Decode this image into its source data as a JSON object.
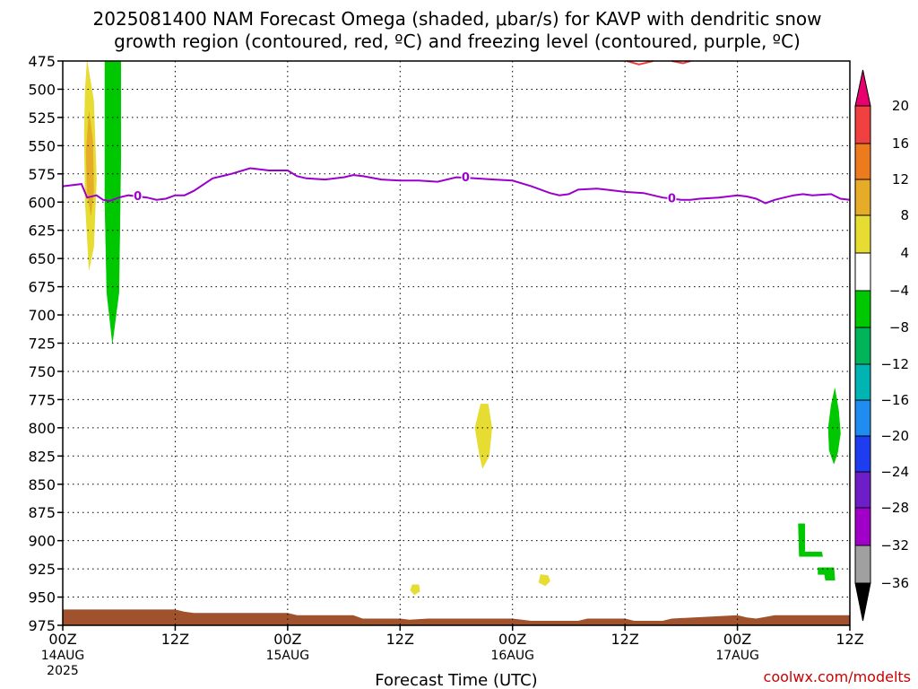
{
  "title_line1": "2025081400 NAM Forecast Omega (shaded, μbar/s) for KAVP with dendritic snow",
  "title_line2": "growth region (contoured, red, ºC) and freezing level (contoured, purple, ºC)",
  "credit": "coolwx.com/modelts",
  "chart_data": {
    "type": "time-height cross section",
    "xlabel": "Forecast Time (UTC)",
    "ylabel": "",
    "x_range_hours": [
      0,
      84
    ],
    "y_axis": "pressure (hPa), inverted",
    "ylim": [
      975,
      475
    ],
    "y_ticks": [
      475,
      500,
      525,
      550,
      575,
      600,
      625,
      650,
      675,
      700,
      725,
      750,
      775,
      800,
      825,
      850,
      875,
      900,
      925,
      950,
      975
    ],
    "x_ticks": [
      {
        "hour": 0,
        "label": "00Z",
        "date": "14AUG",
        "year": "2025"
      },
      {
        "hour": 12,
        "label": "12Z",
        "date": "",
        "year": ""
      },
      {
        "hour": 24,
        "label": "00Z",
        "date": "15AUG",
        "year": ""
      },
      {
        "hour": 36,
        "label": "12Z",
        "date": "",
        "year": ""
      },
      {
        "hour": 48,
        "label": "00Z",
        "date": "16AUG",
        "year": ""
      },
      {
        "hour": 60,
        "label": "12Z",
        "date": "",
        "year": ""
      },
      {
        "hour": 72,
        "label": "00Z",
        "date": "17AUG",
        "year": ""
      },
      {
        "hour": 84,
        "label": "12Z",
        "date": "",
        "year": ""
      }
    ],
    "grid": true,
    "colorbar": {
      "levels": [
        "20",
        "16",
        "12",
        "8",
        "4",
        "−4",
        "−8",
        "−12",
        "−16",
        "−20",
        "−24",
        "−28",
        "−32",
        "−36"
      ],
      "colors_top_to_bottom": [
        "#e8006e",
        "#f04040",
        "#ee7a1e",
        "#e6ac28",
        "#e6dc32",
        "#ffffff",
        "#00c800",
        "#00b45a",
        "#00b4b4",
        "#1e8cf0",
        "#1e3cf0",
        "#6e1ec8",
        "#a000c8",
        "#a0a0a0",
        "#000000"
      ]
    },
    "freezing_level": {
      "color": "#9900cc",
      "contour_label": "0",
      "label_hours": [
        8,
        43,
        65
      ],
      "points": [
        [
          0,
          586
        ],
        [
          2,
          584
        ],
        [
          2.6,
          596
        ],
        [
          3.6,
          594
        ],
        [
          4.3,
          598
        ],
        [
          5,
          599
        ],
        [
          6,
          596
        ],
        [
          7,
          594
        ],
        [
          9,
          596
        ],
        [
          10,
          598
        ],
        [
          11,
          597
        ],
        [
          12,
          594
        ],
        [
          13,
          594
        ],
        [
          14,
          590
        ],
        [
          16,
          579
        ],
        [
          18,
          575
        ],
        [
          20,
          570
        ],
        [
          21,
          571
        ],
        [
          22,
          572
        ],
        [
          24,
          572
        ],
        [
          25,
          577
        ],
        [
          26,
          579
        ],
        [
          28,
          580
        ],
        [
          30,
          578
        ],
        [
          31,
          576
        ],
        [
          32,
          577
        ],
        [
          34,
          580
        ],
        [
          36,
          581
        ],
        [
          38,
          581
        ],
        [
          40,
          582
        ],
        [
          42,
          578
        ],
        [
          44,
          579
        ],
        [
          46,
          580
        ],
        [
          48,
          581
        ],
        [
          50,
          586
        ],
        [
          52,
          592
        ],
        [
          53,
          594
        ],
        [
          54,
          593
        ],
        [
          55,
          589
        ],
        [
          57,
          588
        ],
        [
          58,
          589
        ],
        [
          60,
          591
        ],
        [
          62,
          592
        ],
        [
          64,
          596
        ],
        [
          66,
          598
        ],
        [
          67,
          598
        ],
        [
          68,
          597
        ],
        [
          70,
          596
        ],
        [
          72,
          594
        ],
        [
          73,
          595
        ],
        [
          74,
          597
        ],
        [
          75,
          601
        ],
        [
          76,
          598
        ],
        [
          77,
          596
        ],
        [
          78,
          594
        ],
        [
          79,
          593
        ],
        [
          80,
          594
        ],
        [
          82,
          593
        ],
        [
          83,
          597
        ],
        [
          84,
          598
        ]
      ]
    },
    "dendritic_growth_region": {
      "color": "#f04040",
      "segments": [
        [
          [
            60.2,
            475
          ],
          [
            61.5,
            478
          ],
          [
            62.5,
            476
          ],
          [
            63,
            475
          ]
        ],
        [
          [
            65,
            475
          ],
          [
            66.2,
            477
          ],
          [
            67,
            475
          ]
        ]
      ]
    },
    "omega_shaded": [
      {
        "color": "#00c800",
        "points": [
          [
            4.5,
            475
          ],
          [
            6.2,
            475
          ],
          [
            6.2,
            560
          ],
          [
            6.0,
            680
          ],
          [
            5.3,
            725
          ],
          [
            4.7,
            680
          ],
          [
            4.5,
            600
          ]
        ]
      },
      {
        "color": "#e6dc32",
        "points": [
          [
            2.6,
            475
          ],
          [
            3.3,
            510
          ],
          [
            3.6,
            580
          ],
          [
            3.3,
            640
          ],
          [
            2.8,
            660
          ],
          [
            2.4,
            600
          ],
          [
            2.3,
            540
          ],
          [
            2.4,
            500
          ]
        ]
      },
      {
        "color": "#e6ac28",
        "points": [
          [
            2.8,
            520
          ],
          [
            3.2,
            545
          ],
          [
            3.3,
            590
          ],
          [
            3.0,
            612
          ],
          [
            2.6,
            590
          ],
          [
            2.5,
            555
          ]
        ]
      },
      {
        "color": "#e6dc32",
        "points": [
          [
            44.6,
            779
          ],
          [
            45.4,
            779
          ],
          [
            45.8,
            800
          ],
          [
            45.5,
            825
          ],
          [
            44.8,
            836
          ],
          [
            44.5,
            825
          ],
          [
            44.0,
            800
          ]
        ]
      },
      {
        "color": "#e6dc32",
        "points": [
          [
            37.3,
            939
          ],
          [
            38.0,
            939
          ],
          [
            38.1,
            945
          ],
          [
            37.5,
            948
          ],
          [
            37.1,
            944
          ]
        ]
      },
      {
        "color": "#e6dc32",
        "points": [
          [
            51.0,
            930
          ],
          [
            51.8,
            931
          ],
          [
            52.0,
            936
          ],
          [
            51.5,
            940
          ],
          [
            50.8,
            937
          ]
        ]
      },
      {
        "color": "#00c800",
        "points": [
          [
            82.4,
            765
          ],
          [
            82.8,
            785
          ],
          [
            83.0,
            805
          ],
          [
            82.7,
            822
          ],
          [
            82.3,
            832
          ],
          [
            81.8,
            820
          ],
          [
            81.7,
            800
          ],
          [
            82.0,
            780
          ]
        ]
      },
      {
        "color": "#00c800",
        "points": [
          [
            78.5,
            885
          ],
          [
            79.2,
            885
          ],
          [
            79.2,
            910
          ],
          [
            81.0,
            910
          ],
          [
            81.1,
            914
          ],
          [
            78.6,
            914
          ]
        ]
      },
      {
        "color": "#00c800",
        "points": [
          [
            80.6,
            924
          ],
          [
            82.3,
            924
          ],
          [
            82.4,
            935
          ],
          [
            81.4,
            935
          ],
          [
            81.3,
            930
          ],
          [
            80.6,
            930
          ]
        ]
      }
    ],
    "terrain": {
      "color": "#a0522d",
      "surface_points": [
        [
          0,
          961
        ],
        [
          12,
          961
        ],
        [
          13,
          963
        ],
        [
          14,
          964
        ],
        [
          24,
          964
        ],
        [
          25,
          966
        ],
        [
          31,
          966
        ],
        [
          32,
          969
        ],
        [
          36,
          969
        ],
        [
          37,
          970
        ],
        [
          39,
          969
        ],
        [
          48,
          969
        ],
        [
          50,
          971
        ],
        [
          55,
          971
        ],
        [
          56,
          969
        ],
        [
          60,
          969
        ],
        [
          61,
          971
        ],
        [
          64,
          971
        ],
        [
          65,
          969
        ],
        [
          72,
          966
        ],
        [
          73,
          968
        ],
        [
          74,
          969
        ],
        [
          76,
          966
        ],
        [
          84,
          966
        ]
      ]
    }
  }
}
